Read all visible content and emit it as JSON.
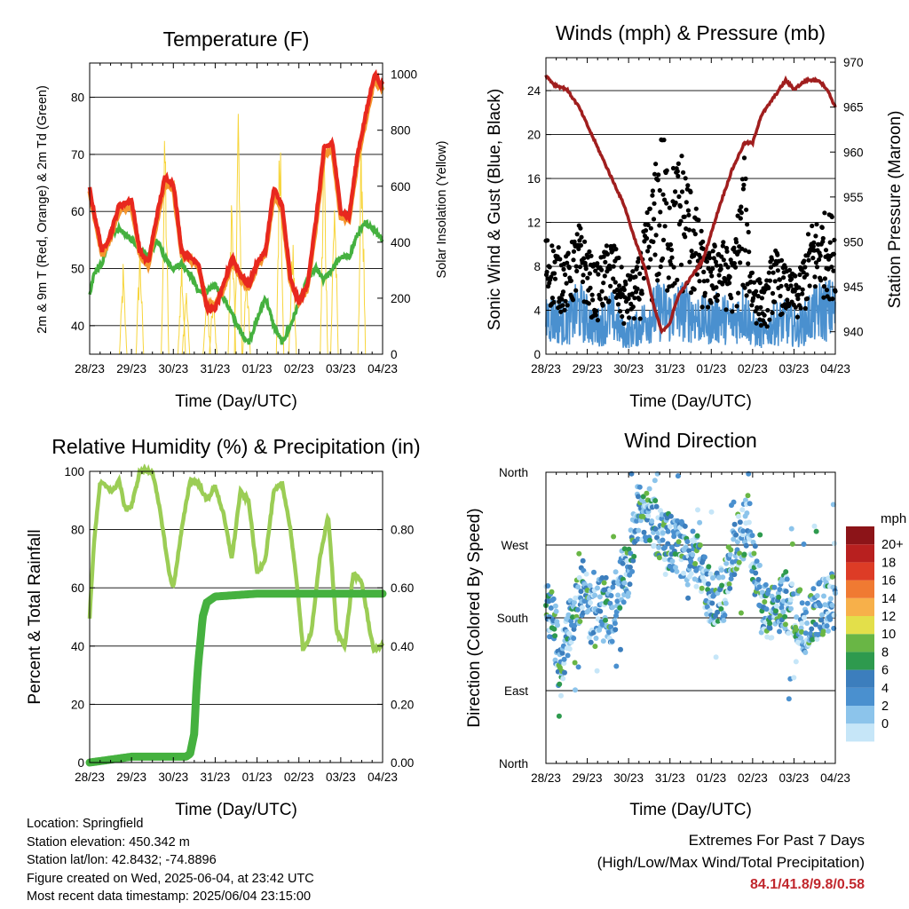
{
  "colors": {
    "temp_2m": "#e8281e",
    "temp_9m": "#f4962d",
    "dewpoint": "#45b13f",
    "solar": "#f7d53c",
    "wind": "#4a90cf",
    "gust": "#000000",
    "pressure": "#a01e1e",
    "rh": "#9bcd55",
    "precip": "#45b13f",
    "extremes_text": "#c1272d"
  },
  "time_ticks": [
    "28/23",
    "29/23",
    "30/23",
    "31/23",
    "01/23",
    "02/23",
    "03/23",
    "04/23"
  ],
  "footer": {
    "location": "Location: Springfield",
    "elevation": "Station elevation: 450.342 m",
    "latlon": "Station lat/lon: 42.8432; -74.8896",
    "created": "Figure created on Wed, 2025-06-04, at 23:42 UTC",
    "recent": "Most recent data timestamp: 2025/06/04 23:15:00"
  },
  "extremes": {
    "line1": "Extremes For Past 7 Days",
    "line2": "(High/Low/Max Wind/Total Precipitation)",
    "values": "84.1/41.8/9.8/0.58"
  },
  "chart_data": [
    {
      "type": "line",
      "title": "Temperature (F)",
      "xlabel": "Time (Day/UTC)",
      "ylabel": "2m & 9m T (Red, Orange) & 2m Td (Green)",
      "ylabel_right": "Solar Insolation (Yellow)",
      "ylim": [
        35,
        86
      ],
      "y_ticks": [
        40,
        50,
        60,
        70,
        80
      ],
      "ylim_right": [
        0,
        1040
      ],
      "y_ticks_right": [
        0,
        200,
        400,
        600,
        800,
        1000
      ],
      "grid": true,
      "x_days": [
        0,
        0.1,
        0.3,
        0.5,
        0.7,
        1.0,
        1.2,
        1.4,
        1.6,
        1.8,
        2.0,
        2.2,
        2.4,
        2.6,
        2.8,
        3.0,
        3.2,
        3.4,
        3.6,
        3.8,
        4.0,
        4.2,
        4.4,
        4.6,
        4.8,
        5.0,
        5.2,
        5.4,
        5.6,
        5.8,
        6.0,
        6.2,
        6.4,
        6.6,
        6.8,
        7.0
      ],
      "series": [
        {
          "name": "2m T",
          "values": [
            64,
            60,
            53,
            56,
            61,
            62,
            53,
            51,
            59,
            66,
            65,
            53,
            52,
            51,
            43,
            43,
            47,
            52,
            49,
            47,
            51,
            53,
            64,
            61,
            48,
            44,
            47,
            58,
            71,
            72,
            60,
            59,
            70,
            77,
            84,
            82
          ]
        },
        {
          "name": "9m T",
          "values": [
            63.5,
            59.5,
            52.5,
            55.5,
            60,
            61,
            52.5,
            50.5,
            58,
            65,
            64,
            52.5,
            51.5,
            50.5,
            43.5,
            43.5,
            46.5,
            51,
            48.5,
            46.5,
            50.5,
            52.5,
            63,
            60,
            47.5,
            44,
            46.5,
            57,
            70,
            71,
            59,
            58.5,
            69,
            76,
            83,
            81.5
          ]
        },
        {
          "name": "2m Td",
          "values": [
            45,
            49,
            51,
            56,
            57,
            55,
            53,
            52,
            55,
            52,
            50,
            51,
            49,
            46,
            46,
            47,
            45,
            42,
            39,
            37,
            41,
            45,
            40,
            37,
            40,
            44,
            48,
            50,
            48,
            50,
            52,
            52,
            56,
            58,
            57,
            55
          ]
        }
      ],
      "solar_peaks": [
        {
          "day": 0.8,
          "value": 340
        },
        {
          "day": 1.2,
          "value": 450
        },
        {
          "day": 1.8,
          "value": 900
        },
        {
          "day": 2.2,
          "value": 390
        },
        {
          "day": 2.3,
          "value": 280
        },
        {
          "day": 2.8,
          "value": 260
        },
        {
          "day": 2.95,
          "value": 240
        },
        {
          "day": 3.4,
          "value": 680
        },
        {
          "day": 3.55,
          "value": 1000
        },
        {
          "day": 3.75,
          "value": 380
        },
        {
          "day": 4.55,
          "value": 1020
        },
        {
          "day": 4.85,
          "value": 480
        },
        {
          "day": 5.6,
          "value": 880
        },
        {
          "day": 5.85,
          "value": 690
        },
        {
          "day": 6.5,
          "value": 920
        }
      ]
    },
    {
      "type": "scatter",
      "title": "Winds (mph) & Pressure (mb)",
      "xlabel": "Time (Day/UTC)",
      "ylabel": "Sonic Wind & Gust (Blue, Black)",
      "ylabel_right": "Station Pressure (Maroon)",
      "ylim": [
        0,
        27
      ],
      "y_ticks": [
        0,
        4,
        8,
        12,
        16,
        20,
        24
      ],
      "ylim_right": [
        937.5,
        970.5
      ],
      "y_ticks_right": [
        940,
        945,
        950,
        955,
        960,
        965,
        970
      ],
      "grid": true,
      "gust_envelope": [
        {
          "day": 0.0,
          "value": 11
        },
        {
          "day": 0.5,
          "value": 9
        },
        {
          "day": 0.8,
          "value": 12
        },
        {
          "day": 1.2,
          "value": 8
        },
        {
          "day": 1.6,
          "value": 11
        },
        {
          "day": 1.9,
          "value": 7
        },
        {
          "day": 2.2,
          "value": 8
        },
        {
          "day": 2.5,
          "value": 14
        },
        {
          "day": 2.8,
          "value": 21
        },
        {
          "day": 3.0,
          "value": 17
        },
        {
          "day": 3.3,
          "value": 19
        },
        {
          "day": 3.6,
          "value": 14
        },
        {
          "day": 3.9,
          "value": 9
        },
        {
          "day": 4.2,
          "value": 11
        },
        {
          "day": 4.5,
          "value": 9
        },
        {
          "day": 4.8,
          "value": 18
        },
        {
          "day": 5.0,
          "value": 8
        },
        {
          "day": 5.3,
          "value": 6
        },
        {
          "day": 5.5,
          "value": 10
        },
        {
          "day": 5.8,
          "value": 8
        },
        {
          "day": 6.1,
          "value": 7
        },
        {
          "day": 6.4,
          "value": 12
        },
        {
          "day": 6.7,
          "value": 13
        },
        {
          "day": 7.0,
          "value": 13
        }
      ],
      "wind_envelope": [
        {
          "day": 0.0,
          "value": 6
        },
        {
          "day": 0.5,
          "value": 5
        },
        {
          "day": 0.8,
          "value": 7
        },
        {
          "day": 1.2,
          "value": 4
        },
        {
          "day": 1.6,
          "value": 6
        },
        {
          "day": 1.9,
          "value": 3
        },
        {
          "day": 2.2,
          "value": 4
        },
        {
          "day": 2.5,
          "value": 6
        },
        {
          "day": 2.8,
          "value": 7
        },
        {
          "day": 3.0,
          "value": 6
        },
        {
          "day": 3.3,
          "value": 7
        },
        {
          "day": 3.6,
          "value": 6
        },
        {
          "day": 3.9,
          "value": 5
        },
        {
          "day": 4.2,
          "value": 6
        },
        {
          "day": 4.5,
          "value": 5
        },
        {
          "day": 4.8,
          "value": 7
        },
        {
          "day": 5.0,
          "value": 4
        },
        {
          "day": 5.3,
          "value": 3
        },
        {
          "day": 5.5,
          "value": 5
        },
        {
          "day": 5.8,
          "value": 5
        },
        {
          "day": 6.1,
          "value": 4
        },
        {
          "day": 6.4,
          "value": 6
        },
        {
          "day": 6.7,
          "value": 7
        },
        {
          "day": 7.0,
          "value": 7
        }
      ],
      "pressure": {
        "x_days": [
          0,
          0.2,
          0.5,
          0.8,
          1.0,
          1.3,
          1.6,
          1.9,
          2.1,
          2.4,
          2.6,
          2.8,
          3.0,
          3.2,
          3.5,
          3.8,
          4.0,
          4.2,
          4.5,
          4.8,
          5.0,
          5.2,
          5.5,
          5.8,
          6.0,
          6.3,
          6.6,
          6.8,
          7.0
        ],
        "values": [
          968.5,
          967.5,
          967,
          965,
          963,
          960,
          957,
          954,
          951,
          947,
          943,
          940,
          941,
          944,
          946,
          948,
          951,
          954,
          958,
          961,
          961,
          964,
          966,
          968,
          967,
          968,
          968,
          967,
          965
        ]
      }
    },
    {
      "type": "line",
      "title": "Relative Humidity (%) & Precipitation (in)",
      "xlabel": "Time (Day/UTC)",
      "ylabel": "Percent & Total Rainfall",
      "ylim": [
        0,
        100
      ],
      "y_ticks": [
        0,
        20,
        40,
        60,
        80,
        100
      ],
      "ylim_right": [
        0,
        1.0
      ],
      "y_ticks_right": [
        "0.00",
        "0.20",
        "0.40",
        "0.60",
        "0.80"
      ],
      "grid": true,
      "series": [
        {
          "name": "Relative Humidity",
          "x_days": [
            0,
            0.1,
            0.25,
            0.4,
            0.55,
            0.7,
            0.85,
            1.0,
            1.2,
            1.5,
            1.7,
            1.9,
            2.0,
            2.2,
            2.4,
            2.6,
            2.8,
            3.0,
            3.2,
            3.4,
            3.6,
            3.8,
            4.0,
            4.2,
            4.4,
            4.6,
            4.8,
            5.0,
            5.1,
            5.3,
            5.5,
            5.7,
            5.9,
            6.1,
            6.3,
            6.5,
            6.7,
            6.8,
            6.9,
            7.0
          ],
          "values": [
            50,
            75,
            96,
            95,
            93,
            97,
            87,
            88,
            100,
            100,
            85,
            65,
            60,
            80,
            97,
            96,
            90,
            95,
            85,
            70,
            93,
            90,
            65,
            70,
            93,
            96,
            80,
            55,
            38,
            45,
            70,
            85,
            45,
            40,
            65,
            62,
            45,
            38,
            40,
            40
          ]
        },
        {
          "name": "Total Rainfall",
          "x_days": [
            0,
            0.5,
            1.0,
            1.5,
            2.0,
            2.3,
            2.4,
            2.5,
            2.55,
            2.6,
            2.65,
            2.7,
            2.8,
            2.9,
            3.0,
            4.0,
            5.0,
            6.0,
            7.0
          ],
          "values": [
            0,
            0.01,
            0.02,
            0.02,
            0.02,
            0.02,
            0.03,
            0.1,
            0.25,
            0.35,
            0.42,
            0.5,
            0.55,
            0.56,
            0.57,
            0.58,
            0.58,
            0.58,
            0.58
          ]
        }
      ]
    },
    {
      "type": "scatter",
      "title": "Wind Direction",
      "xlabel": "Time (Day/UTC)",
      "ylabel": "Direction (Colored By Speed)",
      "y_ticks": [
        "North",
        "East",
        "South",
        "West",
        "North"
      ],
      "ylim": [
        0,
        360
      ],
      "grid": true,
      "legend_title": "mph",
      "legend_labels": [
        "0",
        "2",
        "4",
        "6",
        "8",
        "10",
        "12",
        "14",
        "16",
        "18",
        "20+"
      ],
      "legend_colors": [
        "#c6e6f8",
        "#8cc4eb",
        "#4a90cf",
        "#3c7ebd",
        "#2e9a4e",
        "#69b645",
        "#e3df4a",
        "#f7b04a",
        "#f07a32",
        "#dd3c26",
        "#b8201f",
        "#8c1418"
      ],
      "legend_placement": "right",
      "direction_trend": [
        {
          "day": 0.0,
          "value": 200
        },
        {
          "day": 0.2,
          "value": 170
        },
        {
          "day": 0.35,
          "value": 110
        },
        {
          "day": 0.5,
          "value": 160
        },
        {
          "day": 0.7,
          "value": 190
        },
        {
          "day": 0.9,
          "value": 220
        },
        {
          "day": 1.1,
          "value": 180
        },
        {
          "day": 1.4,
          "value": 200
        },
        {
          "day": 1.6,
          "value": 180
        },
        {
          "day": 1.8,
          "value": 230
        },
        {
          "day": 2.0,
          "value": 240
        },
        {
          "day": 2.2,
          "value": 310
        },
        {
          "day": 2.5,
          "value": 310
        },
        {
          "day": 2.8,
          "value": 280
        },
        {
          "day": 3.1,
          "value": 270
        },
        {
          "day": 3.4,
          "value": 260
        },
        {
          "day": 3.7,
          "value": 250
        },
        {
          "day": 4.0,
          "value": 200
        },
        {
          "day": 4.3,
          "value": 210
        },
        {
          "day": 4.6,
          "value": 270
        },
        {
          "day": 4.9,
          "value": 300
        },
        {
          "day": 5.1,
          "value": 220
        },
        {
          "day": 5.4,
          "value": 180
        },
        {
          "day": 5.7,
          "value": 200
        },
        {
          "day": 6.0,
          "value": 190
        },
        {
          "day": 6.3,
          "value": 170
        },
        {
          "day": 6.6,
          "value": 190
        },
        {
          "day": 6.9,
          "value": 200
        },
        {
          "day": 7.0,
          "value": 200
        }
      ]
    }
  ]
}
